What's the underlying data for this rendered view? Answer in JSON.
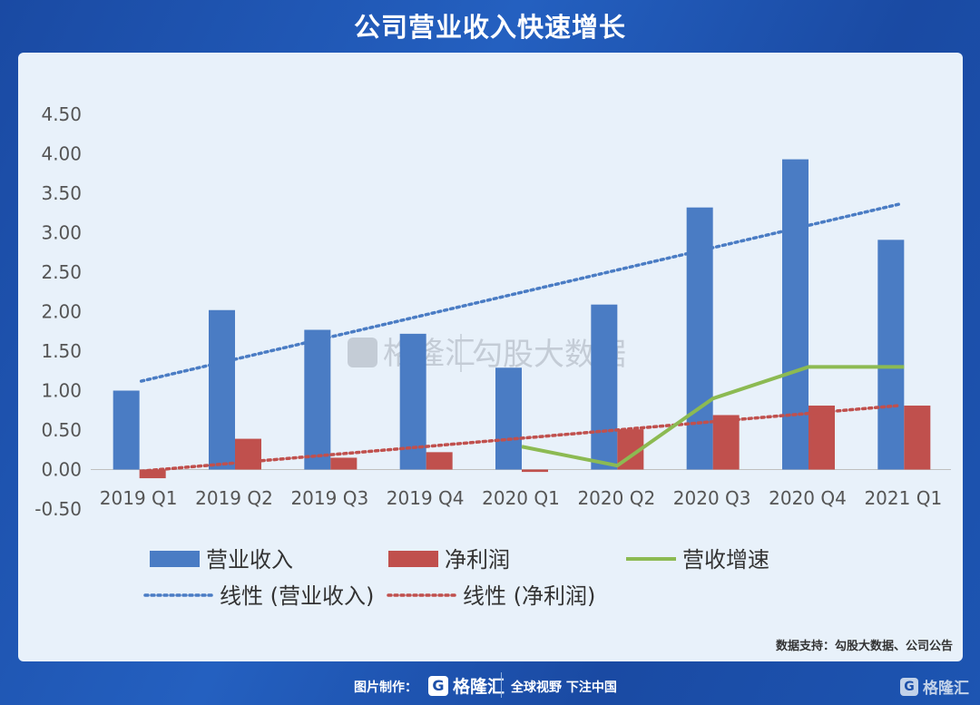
{
  "title": "公司营业收入快速增长",
  "source_note": "数据支持：勾股大数据、公司公告",
  "watermark": {
    "brand": "格隆汇",
    "product": "勾股大数据"
  },
  "footer": {
    "credit_label": "图片制作：",
    "brand": "格隆汇",
    "slogan": "全球视野 下注中国"
  },
  "chart_data": {
    "type": "bar",
    "categories": [
      "2019 Q1",
      "2019 Q2",
      "2019 Q3",
      "2019 Q4",
      "2020 Q1",
      "2020 Q2",
      "2020 Q3",
      "2020 Q4",
      "2021 Q1"
    ],
    "ylim": [
      -0.5,
      4.5
    ],
    "yticks": [
      "4.50",
      "4.00",
      "3.50",
      "3.00",
      "2.50",
      "2.00",
      "1.50",
      "1.00",
      "0.50",
      "0.00",
      "-0.50"
    ],
    "ytick_values": [
      4.5,
      4.0,
      3.5,
      3.0,
      2.5,
      2.0,
      1.5,
      1.0,
      0.5,
      0.0,
      -0.5
    ],
    "series": [
      {
        "name": "营业收入",
        "kind": "bar",
        "color": "#4a7cc4",
        "values": [
          1.0,
          2.02,
          1.77,
          1.72,
          1.29,
          2.09,
          3.32,
          3.93,
          2.91
        ]
      },
      {
        "name": "净利润",
        "kind": "bar",
        "color": "#c0504d",
        "values": [
          -0.11,
          0.39,
          0.15,
          0.22,
          -0.03,
          0.51,
          0.69,
          0.81,
          0.81
        ]
      },
      {
        "name": "营收增速",
        "kind": "line",
        "color": "#8cba52",
        "values": [
          null,
          null,
          null,
          null,
          0.29,
          0.05,
          0.9,
          1.3,
          1.3
        ]
      },
      {
        "name": "线性 (营业收入)",
        "kind": "trend",
        "color": "#4a7cc4",
        "start": 1.12,
        "end": 3.36
      },
      {
        "name": "线性 (净利润)",
        "kind": "trend",
        "color": "#c0504d",
        "start": -0.02,
        "end": 0.81
      }
    ],
    "legend_position": "bottom"
  }
}
